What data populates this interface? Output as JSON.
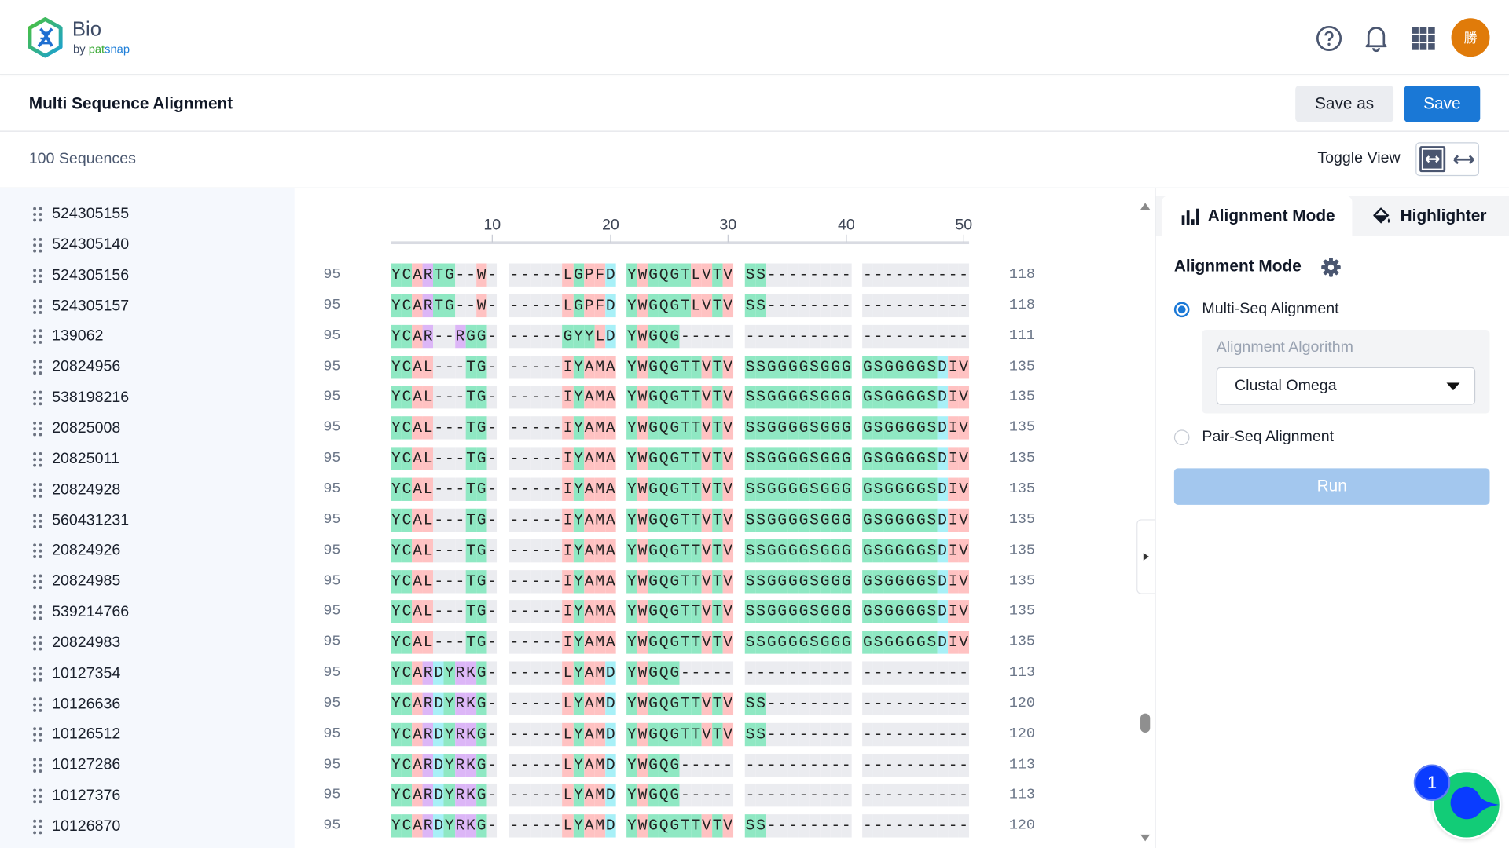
{
  "header": {
    "logo_title": "Bio",
    "logo_by": "by",
    "logo_pat": "pat",
    "logo_snap": "snap",
    "avatar_text": "勝",
    "icons": [
      "help-icon",
      "bell-icon",
      "apps-grid-icon"
    ]
  },
  "titlebar": {
    "title": "Multi Sequence Alignment",
    "save_as_label": "Save as",
    "save_label": "Save"
  },
  "subbar": {
    "sequence_count": "100 Sequences",
    "toggle_label": "Toggle View"
  },
  "sequence_list": [
    "524305155",
    "524305140",
    "524305156",
    "524305157",
    "139062",
    "20824956",
    "538198216",
    "20825008",
    "20825011",
    "20824928",
    "560431231",
    "20824926",
    "20824985",
    "539214766",
    "20824983",
    "10127354",
    "10126636",
    "10126512",
    "10127286",
    "10127376",
    "10126870"
  ],
  "ruler": {
    "ticks": [
      "10",
      "20",
      "30",
      "40",
      "50"
    ]
  },
  "colors": {
    "hydrophobic": "#ffc2c2",
    "polar": "#8fe8c3",
    "positive": "#dcb6f7",
    "negative": "#a8f0f7",
    "gap": "#ebecf0",
    "accent": "#1a78d6",
    "avatar": "#e07b0a"
  },
  "residue_groups": {
    "hydrophobic": "AVLIMFWP",
    "polar": "GSTCYNQ",
    "positive": "RKH",
    "negative": "DE"
  },
  "alignment_rows": [
    {
      "id": "524305156",
      "start": "95",
      "seq": "YCARTG--W------LGPFDYWGQGTLVTVSS------------------",
      "end": "118"
    },
    {
      "id": "524305157",
      "start": "95",
      "seq": "YCARTG--W------LGPFDYWGQGTLVTVSS------------------",
      "end": "118"
    },
    {
      "id": "139062",
      "start": "95",
      "seq": "YCAR--RGG------GYYLDYWGQG-------------------------",
      "end": "111"
    },
    {
      "id": "20824956",
      "start": "95",
      "seq": "YCAL---TG------IYAMAYWGQGTTVTVSSGGGGSGGGGSGGGGSDIV",
      "end": "135"
    },
    {
      "id": "538198216",
      "start": "95",
      "seq": "YCAL---TG------IYAMAYWGQGTTVTVSSGGGGSGGGGSGGGGSDIV",
      "end": "135"
    },
    {
      "id": "20825008",
      "start": "95",
      "seq": "YCAL---TG------IYAMAYWGQGTTVTVSSGGGGSGGGGSGGGGSDIV",
      "end": "135"
    },
    {
      "id": "20825011",
      "start": "95",
      "seq": "YCAL---TG------IYAMAYWGQGTTVTVSSGGGGSGGGGSGGGGSDIV",
      "end": "135"
    },
    {
      "id": "20824928",
      "start": "95",
      "seq": "YCAL---TG------IYAMAYWGQGTTVTVSSGGGGSGGGGSGGGGSDIV",
      "end": "135"
    },
    {
      "id": "560431231",
      "start": "95",
      "seq": "YCAL---TG------IYAMAYWGQGTTVTVSSGGGGSGGGGSGGGGSDIV",
      "end": "135"
    },
    {
      "id": "20824926",
      "start": "95",
      "seq": "YCAL---TG------IYAMAYWGQGTTVTVSSGGGGSGGGGSGGGGSDIV",
      "end": "135"
    },
    {
      "id": "20824985",
      "start": "95",
      "seq": "YCAL---TG------IYAMAYWGQGTTVTVSSGGGGSGGGGSGGGGSDIV",
      "end": "135"
    },
    {
      "id": "539214766",
      "start": "95",
      "seq": "YCAL---TG------IYAMAYWGQGTTVTVSSGGGGSGGGGSGGGGSDIV",
      "end": "135"
    },
    {
      "id": "20824983",
      "start": "95",
      "seq": "YCAL---TG------IYAMAYWGQGTTVTVSSGGGGSGGGGSGGGGSDIV",
      "end": "135"
    },
    {
      "id": "10127354",
      "start": "95",
      "seq": "YCARDYRKG------LYAMDYWGQG-------------------------",
      "end": "113"
    },
    {
      "id": "10126636",
      "start": "95",
      "seq": "YCARDYRKG------LYAMDYWGQGTTVTVSS------------------",
      "end": "120"
    },
    {
      "id": "10126512",
      "start": "95",
      "seq": "YCARDYRKG------LYAMDYWGQGTTVTVSS------------------",
      "end": "120"
    },
    {
      "id": "10127286",
      "start": "95",
      "seq": "YCARDYRKG------LYAMDYWGQG-------------------------",
      "end": "113"
    },
    {
      "id": "10127376",
      "start": "95",
      "seq": "YCARDYRKG------LYAMDYWGQG-------------------------",
      "end": "113"
    },
    {
      "id": "10126870",
      "start": "95",
      "seq": "YCARDYRKG------LYAMDYWGQGTTVTVSS------------------",
      "end": "120"
    }
  ],
  "panel": {
    "tabs": [
      {
        "label": "Alignment Mode",
        "active": true
      },
      {
        "label": "Highlighter",
        "active": false
      }
    ],
    "section_title": "Alignment Mode",
    "option_multi": "Multi-Seq Alignment",
    "option_pair": "Pair-Seq Alignment",
    "selected_option": "multi",
    "algorithm_label": "Alignment Algorithm",
    "algorithm_value": "Clustal Omega",
    "run_label": "Run"
  },
  "float_widget": {
    "badge_count": "1"
  }
}
